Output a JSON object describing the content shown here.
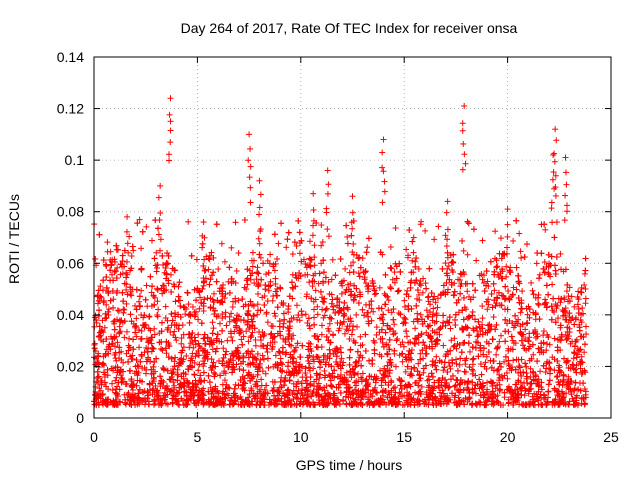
{
  "chart_data": {
    "type": "scatter",
    "title": "Day 264 of 2017, Rate Of TEC Index for receiver onsa",
    "xlabel": "GPS time / hours",
    "ylabel": "ROTI / TECUs",
    "xlim": [
      0,
      25
    ],
    "ylim": [
      0,
      0.14
    ],
    "xticks": [
      0,
      5,
      10,
      15,
      20,
      25
    ],
    "xtick_labels": [
      "0",
      "5",
      "10",
      "15",
      "20",
      "25"
    ],
    "yticks": [
      0,
      0.02,
      0.04,
      0.06,
      0.08,
      0.1,
      0.12,
      0.14
    ],
    "ytick_labels": [
      "0",
      "0.02",
      "0.04",
      "0.06",
      "0.08",
      "0.1",
      "0.12",
      "0.14"
    ],
    "grid": true,
    "marker": "+",
    "color": "#ff0000",
    "series": [
      {
        "name": "ROTI",
        "x_range": [
          0,
          23.8
        ],
        "typical_range": [
          0.005,
          0.065
        ],
        "notable_points": [
          {
            "x": 3.7,
            "y": 0.124
          },
          {
            "x": 17.9,
            "y": 0.121
          },
          {
            "x": 22.3,
            "y": 0.112
          },
          {
            "x": 7.5,
            "y": 0.11
          },
          {
            "x": 14.0,
            "y": 0.108
          },
          {
            "x": 22.8,
            "y": 0.101
          },
          {
            "x": 22.2,
            "y": 0.102
          },
          {
            "x": 11.3,
            "y": 0.096
          },
          {
            "x": 8.0,
            "y": 0.092
          },
          {
            "x": 3.2,
            "y": 0.09
          },
          {
            "x": 10.6,
            "y": 0.087
          },
          {
            "x": 12.5,
            "y": 0.086
          },
          {
            "x": 17.1,
            "y": 0.084
          },
          {
            "x": 20.0,
            "y": 0.081
          },
          {
            "x": 1.6,
            "y": 0.078
          },
          {
            "x": 5.3,
            "y": 0.076
          }
        ]
      }
    ]
  }
}
